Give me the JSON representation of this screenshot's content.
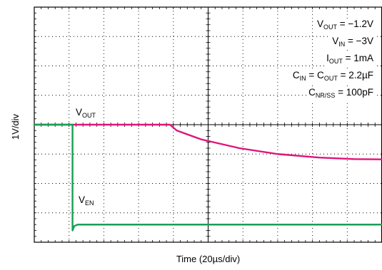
{
  "axes": {
    "ylabel": "1V/div",
    "xlabel": "Time (20µs/div)"
  },
  "annotations": [
    {
      "main": "V",
      "sub": "OUT",
      "tail": " = −1.2V"
    },
    {
      "main": "V",
      "sub": "IN",
      "tail": " = −3V"
    },
    {
      "main": "I",
      "sub": "OUT",
      "tail": " = 1mA"
    },
    {
      "main": "C",
      "sub": "IN",
      "mid": " = C",
      "sub2": "OUT",
      "tail": " = 2.2µF"
    },
    {
      "main": "C",
      "sub": "NR/SS",
      "tail": " = 100pF"
    }
  ],
  "trace_labels": {
    "vout": {
      "main": "V",
      "sub": "OUT"
    },
    "ven": {
      "main": "V",
      "sub": "EN"
    }
  },
  "colors": {
    "vout": "#e0147a",
    "ven": "#1a9e55",
    "grid": "#000000"
  },
  "chart_data": {
    "type": "line",
    "x_divisions": 10,
    "y_divisions": 8,
    "x_units_per_div": "20µs",
    "y_units_per_div": "1V",
    "grid": true,
    "series": [
      {
        "name": "VOUT",
        "color": "#e0147a",
        "points_div": [
          [
            0.0,
            4.0
          ],
          [
            3.9,
            4.0
          ],
          [
            4.1,
            3.8
          ],
          [
            4.8,
            3.5
          ],
          [
            5.9,
            3.2
          ],
          [
            7.0,
            3.0
          ],
          [
            8.2,
            2.88
          ],
          [
            9.2,
            2.83
          ],
          [
            10.0,
            2.82
          ]
        ]
      },
      {
        "name": "VEN",
        "color": "#1a9e55",
        "points_div": [
          [
            0.0,
            4.0
          ],
          [
            1.1,
            4.0
          ],
          [
            1.1,
            0.4
          ],
          [
            1.15,
            0.55
          ],
          [
            1.25,
            0.6
          ],
          [
            10.0,
            0.6
          ]
        ]
      }
    ]
  }
}
